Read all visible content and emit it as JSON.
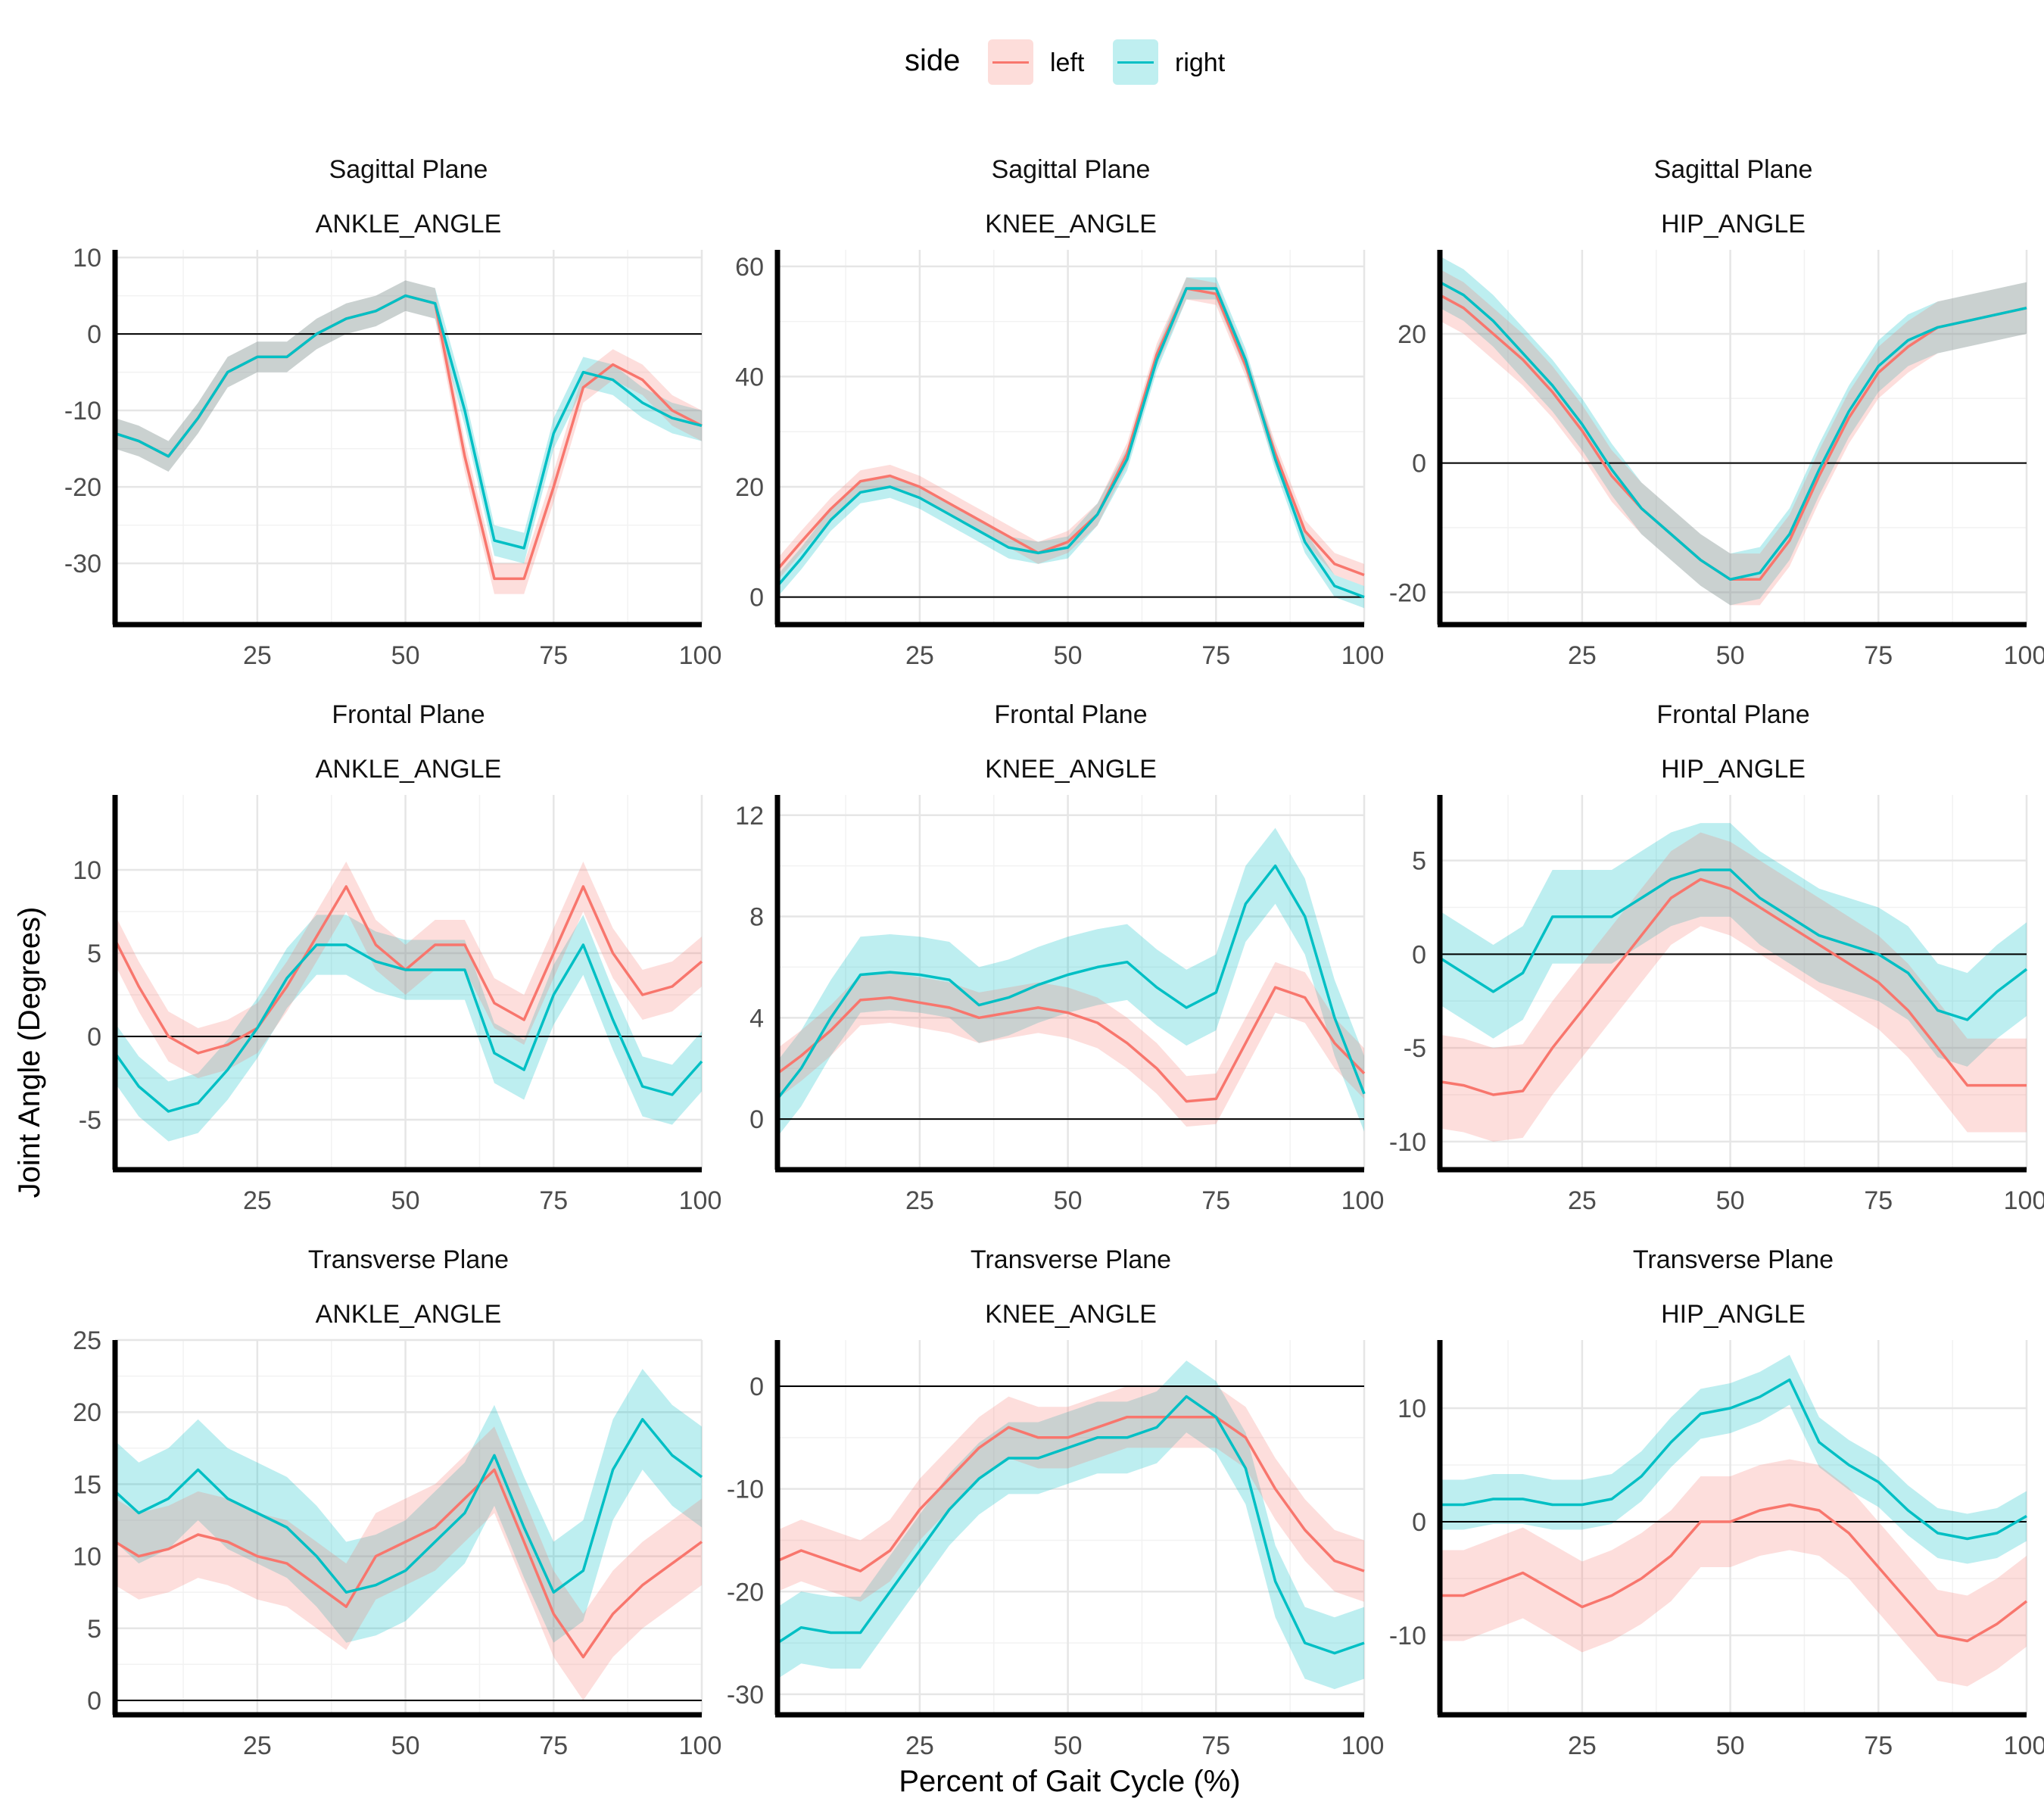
{
  "legend": {
    "title": "side",
    "position": "top"
  },
  "colors": {
    "left": "#F8766D",
    "right": "#00BFC4",
    "left_band": "#F8766D",
    "right_band": "#00BFC4"
  },
  "chart_data": {
    "type": "line",
    "xlabel": "Percent of Gait Cycle (%)",
    "ylabel": "Joint Angle (Degrees)",
    "xlim": [
      1,
      100
    ],
    "xticks": [
      25,
      50,
      75,
      100
    ],
    "grid": true,
    "series_names": [
      "left",
      "right"
    ],
    "x": [
      1,
      5,
      10,
      15,
      20,
      25,
      30,
      35,
      40,
      45,
      50,
      55,
      60,
      65,
      70,
      75,
      80,
      85,
      90,
      95,
      100
    ],
    "panels": [
      {
        "plane": "Sagittal  Plane",
        "joint": "ANKLE_ANGLE",
        "ylim": [
          -38,
          11
        ],
        "yticks": [
          -30,
          -20,
          -10,
          0,
          10
        ],
        "left": {
          "mean": [
            -13,
            -14,
            -16,
            -11,
            -5,
            -3,
            -3,
            0,
            2,
            3,
            5,
            4,
            -16,
            -32,
            -32,
            -20,
            -7,
            -4,
            -6,
            -10,
            -12
          ],
          "sd": 2
        },
        "right": {
          "mean": [
            -13,
            -14,
            -16,
            -11,
            -5,
            -3,
            -3,
            0,
            2,
            3,
            5,
            4,
            -10,
            -27,
            -28,
            -13,
            -5,
            -6,
            -9,
            -11,
            -12
          ],
          "sd": 2
        }
      },
      {
        "plane": "Sagittal  Plane",
        "joint": "KNEE_ANGLE",
        "ylim": [
          -5,
          63
        ],
        "yticks": [
          0,
          20,
          40,
          60
        ],
        "left": {
          "mean": [
            5,
            10,
            16,
            21,
            22,
            20,
            17,
            14,
            11,
            8,
            10,
            15,
            26,
            44,
            56,
            55,
            42,
            26,
            12,
            6,
            4
          ],
          "sd": 2
        },
        "right": {
          "mean": [
            2,
            7,
            14,
            19,
            20,
            18,
            15,
            12,
            9,
            8,
            9,
            15,
            25,
            43,
            56,
            56,
            43,
            25,
            10,
            2,
            0
          ],
          "sd": 2
        }
      },
      {
        "plane": "Sagittal  Plane",
        "joint": "HIP_ANGLE",
        "ylim": [
          -25,
          33
        ],
        "yticks": [
          -20,
          0,
          20
        ],
        "left": {
          "mean": [
            26,
            24,
            20,
            16,
            11,
            5,
            -2,
            -7,
            -11,
            -15,
            -18,
            -18,
            -12,
            -2,
            7,
            14,
            18,
            21,
            22,
            23,
            24
          ],
          "sd": 4
        },
        "right": {
          "mean": [
            28,
            26,
            22,
            17,
            12,
            6,
            -1,
            -7,
            -11,
            -15,
            -18,
            -17,
            -11,
            -1,
            8,
            15,
            19,
            21,
            22,
            23,
            24
          ],
          "sd": 4
        }
      },
      {
        "plane": "Frontal Plane",
        "joint": "ANKLE_ANGLE",
        "ylim": [
          -8,
          14.5
        ],
        "yticks": [
          -5,
          0,
          5,
          10
        ],
        "left": {
          "mean": [
            5.8,
            3,
            0,
            -1,
            -0.5,
            0.5,
            3,
            6,
            9,
            5.5,
            4,
            5.5,
            5.5,
            2,
            1,
            5,
            9,
            5,
            2.5,
            3,
            4.5
          ],
          "sd": 1.5
        },
        "right": {
          "mean": [
            -1,
            -3,
            -4.5,
            -4,
            -2,
            0.5,
            3.5,
            5.5,
            5.5,
            4.5,
            4,
            4,
            4,
            -1,
            -2,
            2.5,
            5.5,
            1,
            -3,
            -3.5,
            -1.5
          ],
          "sd": 1.8
        }
      },
      {
        "plane": "Frontal Plane",
        "joint": "KNEE_ANGLE",
        "ylim": [
          -2,
          12.8
        ],
        "yticks": [
          0,
          4,
          8,
          12
        ],
        "left": {
          "mean": [
            1.8,
            2.5,
            3.5,
            4.7,
            4.8,
            4.6,
            4.4,
            4,
            4.2,
            4.4,
            4.2,
            3.8,
            3,
            2,
            0.7,
            0.8,
            3,
            5.2,
            4.8,
            3,
            1.8
          ],
          "sd": 1
        },
        "right": {
          "mean": [
            0.8,
            2,
            4,
            5.7,
            5.8,
            5.7,
            5.5,
            4.5,
            4.8,
            5.3,
            5.7,
            6,
            6.2,
            5.2,
            4.4,
            5,
            8.5,
            10,
            8,
            4,
            1
          ],
          "sd": 1.5
        }
      },
      {
        "plane": "Frontal Plane",
        "joint": "HIP_ANGLE",
        "ylim": [
          -11.5,
          8.5
        ],
        "yticks": [
          -10,
          -5,
          0,
          5
        ],
        "left": {
          "mean": [
            -6.8,
            -7,
            -7.5,
            -7.3,
            -5,
            -3,
            -1,
            1,
            3,
            4,
            3.5,
            2.5,
            1.5,
            0.5,
            -0.5,
            -1.5,
            -3,
            -5,
            -7,
            -7,
            -7
          ],
          "sd": 2.5
        },
        "right": {
          "mean": [
            -0.2,
            -1,
            -2,
            -1,
            2,
            2,
            2,
            3,
            4,
            4.5,
            4.5,
            3,
            2,
            1,
            0.5,
            0,
            -1,
            -3,
            -3.5,
            -2,
            -0.8
          ],
          "sd": 2.5
        }
      },
      {
        "plane": "Transverse Plane",
        "joint": "ANKLE_ANGLE",
        "ylim": [
          -1,
          25
        ],
        "yticks": [
          0,
          5,
          10,
          15,
          20,
          25
        ],
        "left": {
          "mean": [
            11,
            10,
            10.5,
            11.5,
            11,
            10,
            9.5,
            8,
            6.5,
            10,
            11,
            12,
            14,
            16,
            11,
            6,
            3,
            6,
            8,
            9.5,
            11
          ],
          "sd": 3
        },
        "right": {
          "mean": [
            14.5,
            13,
            14,
            16,
            14,
            13,
            12,
            10,
            7.5,
            8,
            9,
            11,
            13,
            17,
            12,
            7.5,
            9,
            16,
            19.5,
            17,
            15.5
          ],
          "sd": 3.5
        }
      },
      {
        "plane": "Transverse Plane",
        "joint": "KNEE_ANGLE",
        "ylim": [
          -32,
          4.5
        ],
        "yticks": [
          -30,
          -20,
          -10,
          0
        ],
        "left": {
          "mean": [
            -17,
            -16,
            -17,
            -18,
            -16,
            -12,
            -9,
            -6,
            -4,
            -5,
            -5,
            -4,
            -3,
            -3,
            -3,
            -3,
            -5,
            -10,
            -14,
            -17,
            -18
          ],
          "sd": 3
        },
        "right": {
          "mean": [
            -25,
            -23.5,
            -24,
            -24,
            -20,
            -16,
            -12,
            -9,
            -7,
            -7,
            -6,
            -5,
            -5,
            -4,
            -1,
            -3,
            -8,
            -19,
            -25,
            -26,
            -25
          ],
          "sd": 3.5
        }
      },
      {
        "plane": "Transverse Plane",
        "joint": "HIP_ANGLE",
        "ylim": [
          -17,
          16
        ],
        "yticks": [
          -10,
          0,
          10
        ],
        "left": {
          "mean": [
            -6.5,
            -6.5,
            -5.5,
            -4.5,
            -6,
            -7.5,
            -6.5,
            -5,
            -3,
            0,
            0,
            1,
            1.5,
            1,
            -1,
            -4,
            -7,
            -10,
            -10.5,
            -9,
            -7
          ],
          "sd": 4
        },
        "right": {
          "mean": [
            1.5,
            1.5,
            2,
            2,
            1.5,
            1.5,
            2,
            4,
            7,
            9.5,
            10,
            11,
            12.5,
            7,
            5,
            3.5,
            1,
            -1,
            -1.5,
            -1,
            0.5
          ],
          "sd": 2.2
        }
      }
    ]
  }
}
